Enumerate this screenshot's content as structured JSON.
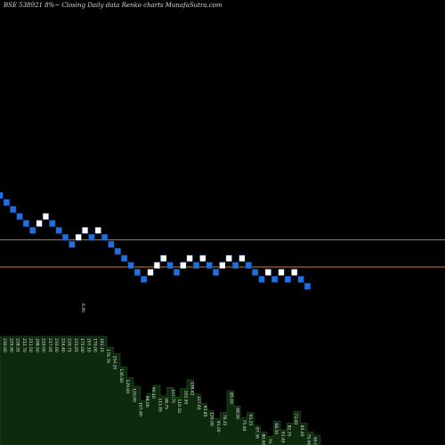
{
  "title": "BSE 538921 8%~ Closing Daily data Renko charts MunafaSutra.com",
  "colors": {
    "background": "#000000",
    "up_brick": "#ffffff",
    "down_brick": "#1e6fe0",
    "brick_border": "#0b2a60",
    "reference_line": "#c87f1e",
    "volume_fill": "#0d2a0d",
    "volume_edge": "#1f5a1f",
    "label": "#e6e6e6"
  },
  "chart_data": {
    "type": "renko",
    "title": "BSE 538921 8%~ Closing Daily data Renko charts MunafaSutra.com",
    "brick_size_note": "8%~",
    "bricks": [
      {
        "dir": "down",
        "level": 0
      },
      {
        "dir": "down",
        "level": -1
      },
      {
        "dir": "down",
        "level": -2
      },
      {
        "dir": "down",
        "level": -3
      },
      {
        "dir": "down",
        "level": -4
      },
      {
        "dir": "down",
        "level": -5
      },
      {
        "dir": "up",
        "level": -4
      },
      {
        "dir": "up",
        "level": -3
      },
      {
        "dir": "down",
        "level": -4
      },
      {
        "dir": "down",
        "level": -5
      },
      {
        "dir": "down",
        "level": -6
      },
      {
        "dir": "down",
        "level": -7
      },
      {
        "dir": "up",
        "level": -6
      },
      {
        "dir": "up",
        "level": -5
      },
      {
        "dir": "down",
        "level": -6
      },
      {
        "dir": "up",
        "level": -5
      },
      {
        "dir": "down",
        "level": -6
      },
      {
        "dir": "down",
        "level": -7
      },
      {
        "dir": "down",
        "level": -8
      },
      {
        "dir": "down",
        "level": -9
      },
      {
        "dir": "down",
        "level": -10
      },
      {
        "dir": "down",
        "level": -11
      },
      {
        "dir": "down",
        "level": -12
      },
      {
        "dir": "up",
        "level": -11
      },
      {
        "dir": "up",
        "level": -10
      },
      {
        "dir": "up",
        "level": -9
      },
      {
        "dir": "down",
        "level": -10
      },
      {
        "dir": "down",
        "level": -11
      },
      {
        "dir": "up",
        "level": -10
      },
      {
        "dir": "up",
        "level": -9
      },
      {
        "dir": "down",
        "level": -10
      },
      {
        "dir": "up",
        "level": -9
      },
      {
        "dir": "down",
        "level": -10
      },
      {
        "dir": "down",
        "level": -11
      },
      {
        "dir": "up",
        "level": -10
      },
      {
        "dir": "up",
        "level": -9
      },
      {
        "dir": "down",
        "level": -10
      },
      {
        "dir": "up",
        "level": -9
      },
      {
        "dir": "down",
        "level": -10
      },
      {
        "dir": "down",
        "level": -11
      },
      {
        "dir": "down",
        "level": -12
      },
      {
        "dir": "up",
        "level": -11
      },
      {
        "dir": "down",
        "level": -12
      },
      {
        "dir": "up",
        "level": -11
      },
      {
        "dir": "down",
        "level": -12
      },
      {
        "dir": "up",
        "level": -11
      },
      {
        "dir": "down",
        "level": -12
      },
      {
        "dir": "down",
        "level": -13
      }
    ],
    "reference_lines": [
      {
        "price_position": "upper",
        "level": -6.3
      },
      {
        "price_position": "lower",
        "level": -10.2
      }
    ],
    "volume_profile": [
      {
        "value": 100
      },
      {
        "value": 100
      },
      {
        "value": 100
      },
      {
        "value": 100
      },
      {
        "value": 100
      },
      {
        "value": 100
      },
      {
        "value": 100
      },
      {
        "value": 100
      },
      {
        "value": 100
      },
      {
        "value": 100
      },
      {
        "value": 100
      },
      {
        "value": 100
      },
      {
        "value": 100
      },
      {
        "value": 100
      },
      {
        "value": 100
      },
      {
        "value": 100
      },
      {
        "value": 90
      },
      {
        "value": 84
      },
      {
        "value": 72
      },
      {
        "value": 62
      },
      {
        "value": 54
      },
      {
        "value": 41
      },
      {
        "value": 47
      },
      {
        "value": 55
      },
      {
        "value": 45
      },
      {
        "value": 53
      },
      {
        "value": 44
      },
      {
        "value": 52
      },
      {
        "value": 60
      },
      {
        "value": 47
      },
      {
        "value": 38
      },
      {
        "value": 32
      },
      {
        "value": 24
      },
      {
        "value": 30
      },
      {
        "value": 50
      },
      {
        "value": 36
      },
      {
        "value": 25
      },
      {
        "value": 30
      },
      {
        "value": 18
      },
      {
        "value": 12
      },
      {
        "value": 8
      },
      {
        "value": 22
      },
      {
        "value": 14
      },
      {
        "value": 20
      },
      {
        "value": 31
      },
      {
        "value": 20
      },
      {
        "value": 12
      },
      {
        "value": 9
      },
      {
        "value": 2
      }
    ],
    "value_labels": [
      "230.00",
      "229.90",
      "228.35",
      "212.70",
      "211.50",
      "208.50",
      "219.00",
      "217.05",
      "233.00",
      "224.40",
      "220.75",
      "231.65",
      "175.00",
      "207.10",
      "170.00",
      "191.15",
      "179.70",
      "154.20",
      "136.00",
      "129.00",
      "120.00",
      "107.40",
      "98.00",
      "90.10",
      "111.85",
      "98.75",
      "107.75",
      "119.10",
      "102.95",
      "136.42",
      "117.60",
      "93.85",
      "120.00",
      "91.00",
      "78.35",
      "85.00",
      "68.00",
      "75.00",
      "93.25",
      "87.36",
      "80.00",
      "70.85",
      "68.50",
      "91.45",
      "82.35",
      "73.00",
      "85.40",
      "75.00",
      "69.00",
      "69.00"
    ],
    "top_marker": "6.90"
  }
}
